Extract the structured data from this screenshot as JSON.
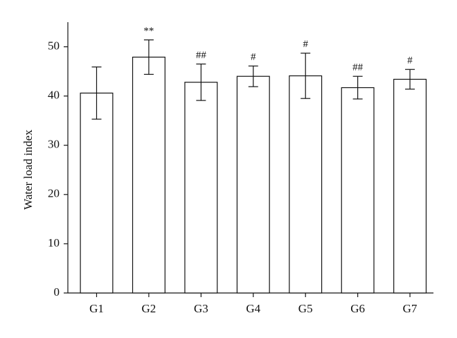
{
  "chart_data": {
    "type": "bar",
    "y_label": "Water load index",
    "categories": [
      "G1",
      "G2",
      "G3",
      "G4",
      "G5",
      "G6",
      "G7"
    ],
    "values": [
      40.6,
      47.9,
      42.8,
      44.0,
      44.1,
      41.7,
      43.4
    ],
    "errors": [
      5.3,
      3.5,
      3.7,
      2.1,
      4.6,
      2.3,
      2.0
    ],
    "annotations": [
      null,
      "**",
      "##",
      "#",
      "#",
      "##",
      "#"
    ],
    "color": "#ffffff",
    "ylim": [
      0,
      55
    ],
    "yticks": [
      0,
      10,
      20,
      30,
      40,
      50
    ],
    "grid": false
  }
}
